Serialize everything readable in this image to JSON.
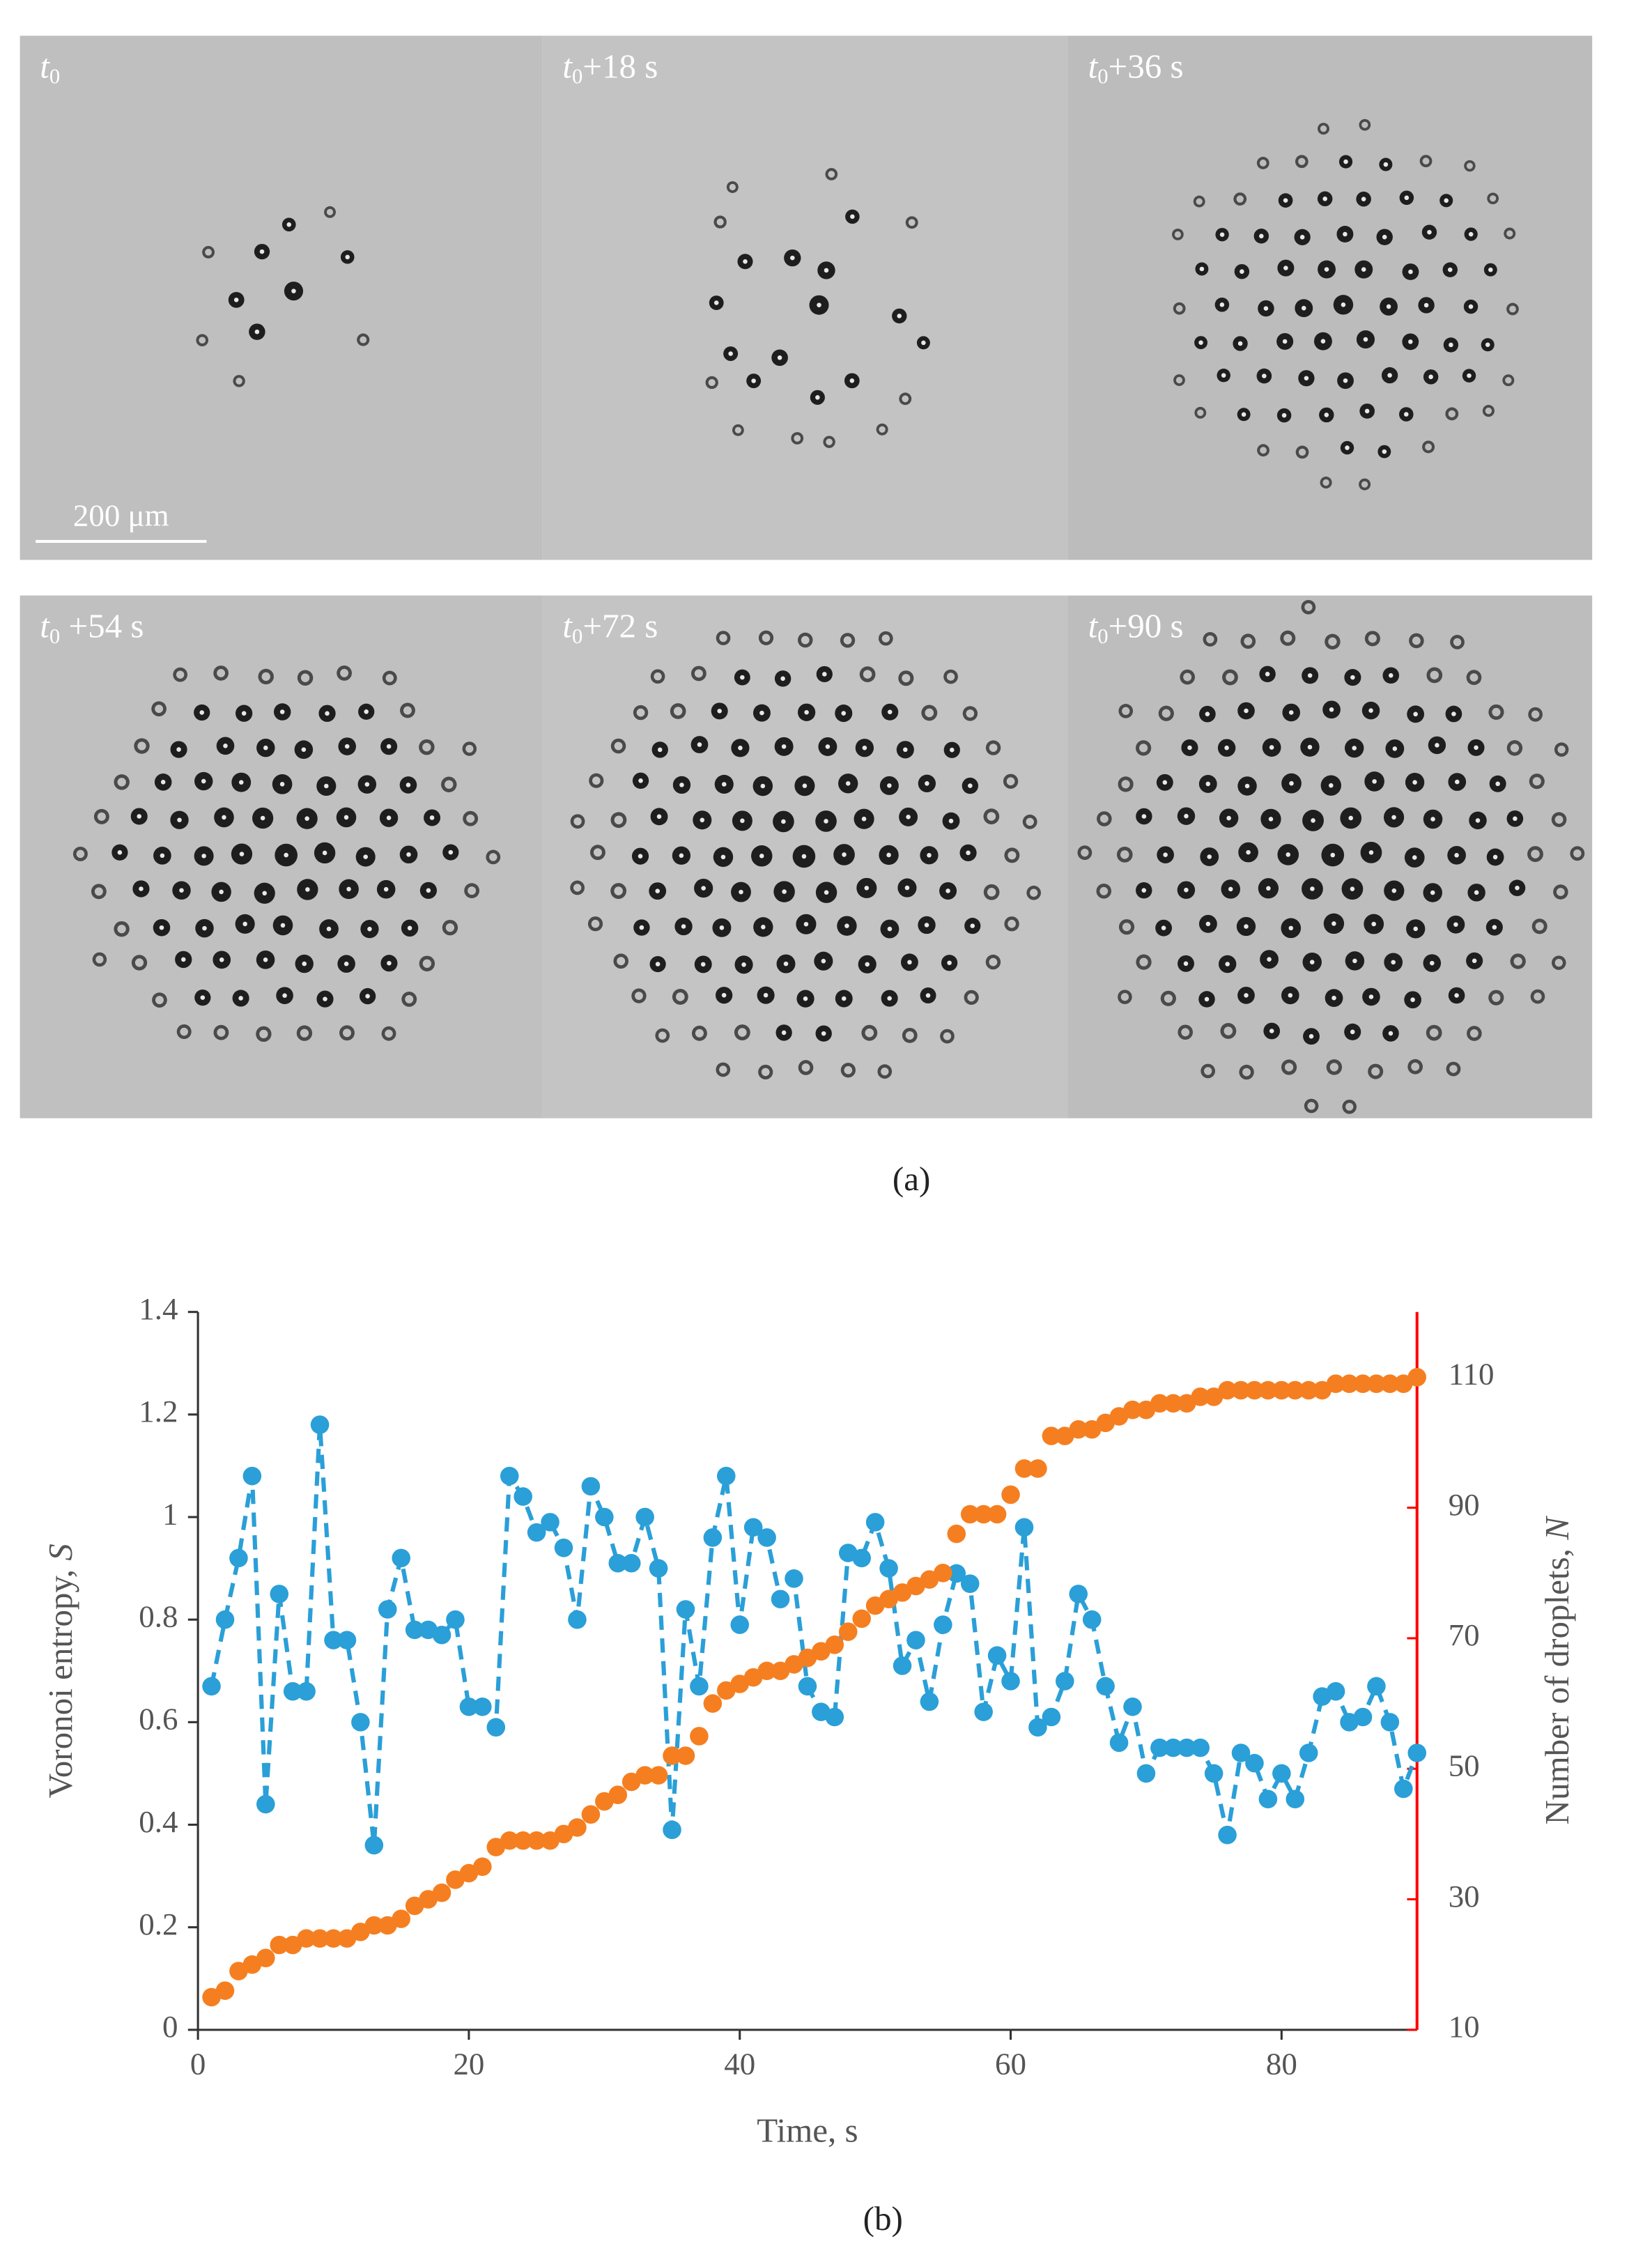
{
  "figure": {
    "panels": [
      {
        "t": "t",
        "sub": "0"
      },
      {
        "t": "t",
        "sub": "0",
        "offset": "+18 s"
      },
      {
        "t": "t",
        "sub": "0",
        "offset": "+36 s"
      },
      {
        "t": "t",
        "sub": "0",
        "offset": "+54 s"
      },
      {
        "t": "t",
        "sub": "0",
        "offset": "+72 s"
      },
      {
        "t": "t",
        "sub": "0",
        "offset": "+90 s"
      }
    ],
    "scale_bar": "200 μm",
    "label": "(a)"
  },
  "chart_data": {
    "type": "line",
    "label": "(b)",
    "xlabel": "Time, s",
    "ylabel": "Voronoi entropy,",
    "ylabel_symbol": "S",
    "y2label": "Number of droplets,",
    "y2label_symbol": "N",
    "xlim": [
      0,
      90
    ],
    "xticks": [
      0,
      20,
      40,
      60,
      80
    ],
    "ylim": [
      0,
      1.4
    ],
    "yticks": [
      0,
      0.2,
      0.4,
      0.6,
      0.8,
      1,
      1.2,
      1.4
    ],
    "y2lim": [
      10,
      120
    ],
    "y2ticks": [
      10,
      30,
      50,
      70,
      90,
      110
    ],
    "y2_axis_color": "#ff0000",
    "x": [
      1,
      2,
      3,
      4,
      5,
      6,
      7,
      8,
      9,
      10,
      11,
      12,
      13,
      14,
      15,
      16,
      17,
      18,
      19,
      20,
      21,
      22,
      23,
      24,
      25,
      26,
      27,
      28,
      29,
      30,
      31,
      32,
      33,
      34,
      35,
      36,
      37,
      38,
      39,
      40,
      41,
      42,
      43,
      44,
      45,
      46,
      47,
      48,
      49,
      50,
      51,
      52,
      53,
      54,
      55,
      56,
      57,
      58,
      59,
      60,
      61,
      62,
      63,
      64,
      65,
      66,
      67,
      68,
      69,
      70,
      71,
      72,
      73,
      74,
      75,
      76,
      77,
      78,
      79,
      80,
      81,
      82,
      83,
      84,
      85,
      86,
      87,
      88,
      89,
      90
    ],
    "series": [
      {
        "color": "#2a9fd8",
        "line": "dashed",
        "values": [
          0.67,
          0.8,
          0.92,
          1.08,
          0.44,
          0.85,
          0.66,
          0.66,
          1.18,
          0.76,
          0.76,
          0.6,
          0.36,
          0.82,
          0.92,
          0.78,
          0.78,
          0.77,
          0.8,
          0.63,
          0.63,
          0.59,
          1.08,
          1.04,
          0.97,
          0.99,
          0.94,
          0.8,
          1.06,
          1.0,
          0.91,
          0.91,
          1.0,
          0.9,
          0.39,
          0.82,
          0.67,
          0.96,
          1.08,
          0.79,
          0.98,
          0.96,
          0.84,
          0.88,
          0.67,
          0.62,
          0.61,
          0.93,
          0.92,
          0.99,
          0.9,
          0.71,
          0.76,
          0.64,
          0.79,
          0.89,
          0.87,
          0.62,
          0.73,
          0.68,
          0.98,
          0.59,
          0.61,
          0.68,
          0.85,
          0.8,
          0.67,
          0.56,
          0.63,
          0.5,
          0.55,
          0.55,
          0.55,
          0.55,
          0.5,
          0.38,
          0.54,
          0.52,
          0.45,
          0.5,
          0.45,
          0.54,
          0.65,
          0.66,
          0.6,
          0.61,
          0.67,
          0.6,
          0.47,
          0.54
        ]
      },
      {
        "color": "#f57f20",
        "axis": "y2",
        "values": [
          15,
          16,
          19,
          20,
          21,
          23,
          23,
          24,
          24,
          24,
          24,
          25,
          26,
          26,
          27,
          29,
          30,
          31,
          33,
          34,
          35,
          38,
          39,
          39,
          39,
          39,
          40,
          41,
          43,
          45,
          46,
          48,
          49,
          49,
          52,
          52,
          55,
          60,
          62,
          63,
          64,
          65,
          65,
          66,
          67,
          68,
          69,
          71,
          73,
          75,
          76,
          77,
          78,
          79,
          80,
          86,
          89,
          89,
          89,
          92,
          96,
          96,
          101,
          101,
          102,
          102,
          103,
          104,
          105,
          105,
          106,
          106,
          106,
          107,
          107,
          108,
          108,
          108,
          108,
          108,
          108,
          108,
          108,
          109,
          109,
          109,
          109,
          109,
          109,
          110
        ]
      }
    ]
  }
}
